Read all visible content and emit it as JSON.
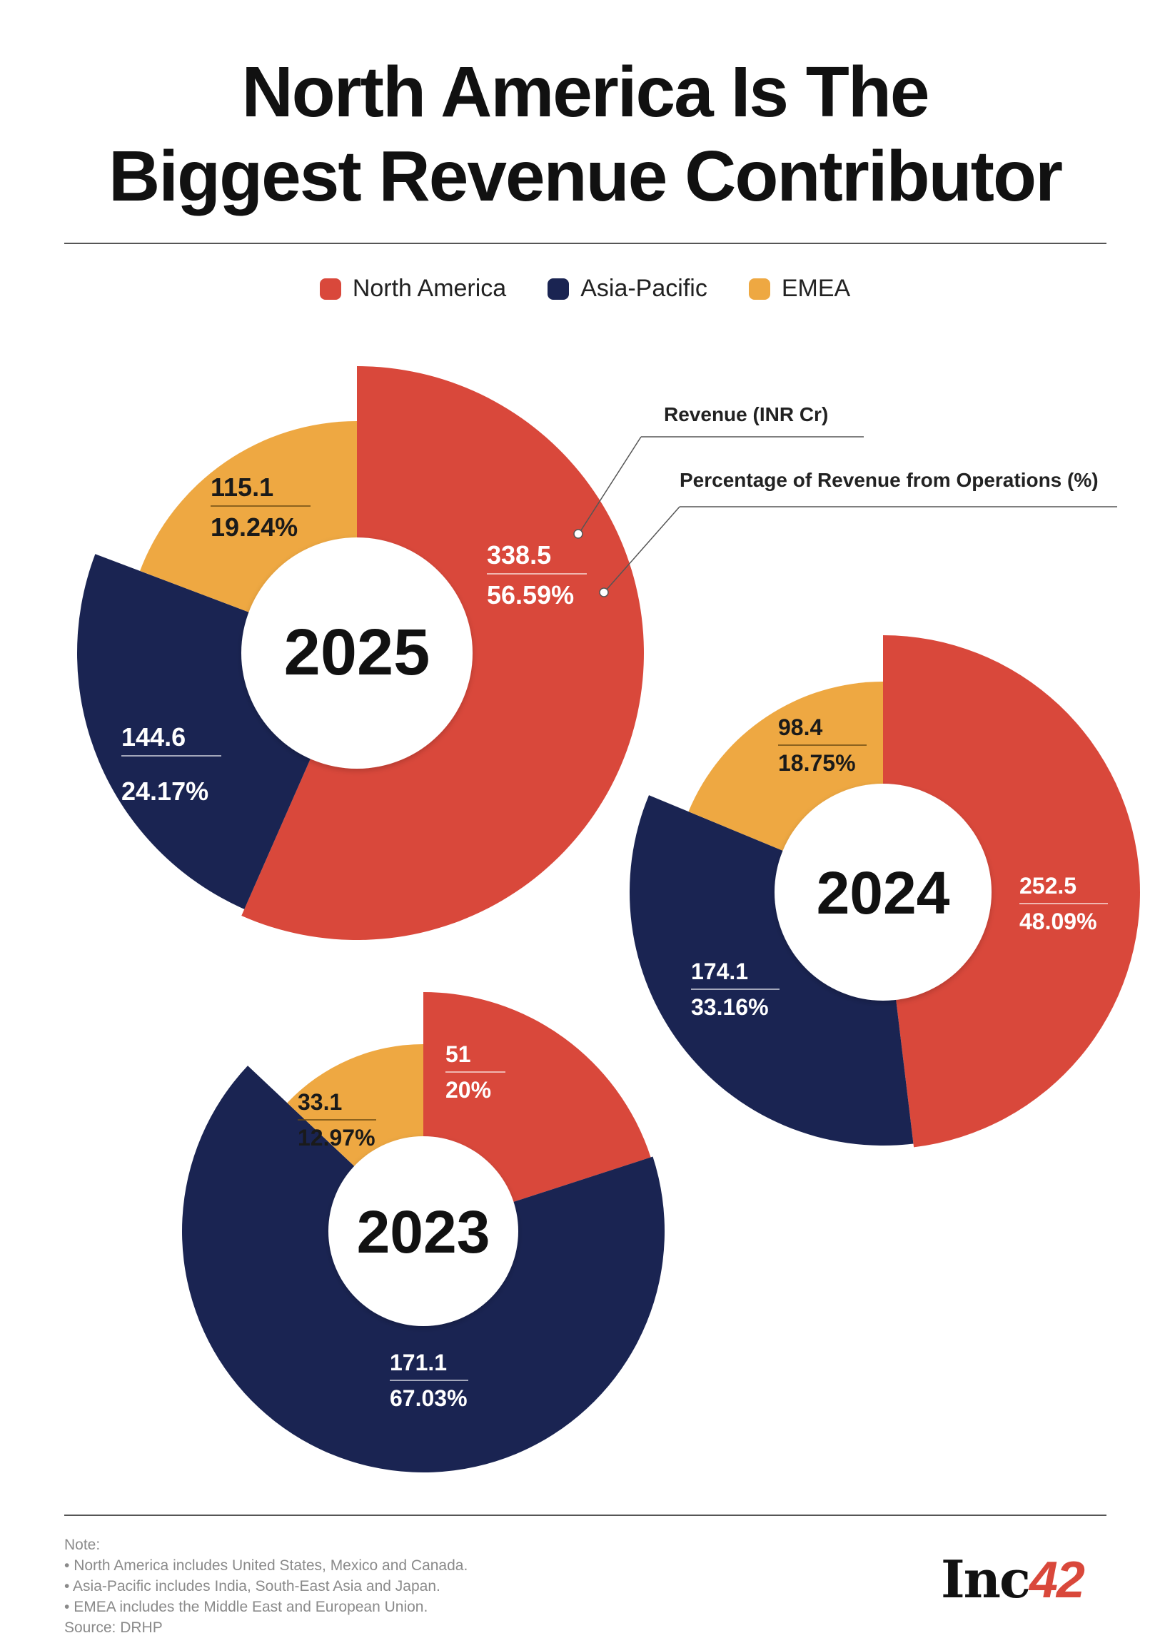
{
  "title": {
    "line1": "North America Is The",
    "line2": "Biggest Revenue Contributor"
  },
  "legend": [
    {
      "label": "North America",
      "color": "#d9483b"
    },
    {
      "label": "Asia-Pacific",
      "color": "#1a2452"
    },
    {
      "label": "EMEA",
      "color": "#eea842"
    }
  ],
  "annotations": {
    "revenue": "Revenue (INR Cr)",
    "percentage": "Percentage of Revenue from Operations (%)"
  },
  "chart_data": [
    {
      "type": "pie",
      "year": "2025",
      "series": [
        {
          "name": "North America",
          "value": "338.5",
          "percent": "56.59%",
          "pct": 56.59
        },
        {
          "name": "Asia-Pacific",
          "value": "144.6",
          "percent": "24.17%",
          "pct": 24.17
        },
        {
          "name": "EMEA",
          "value": "115.1",
          "percent": "19.24%",
          "pct": 19.24
        }
      ]
    },
    {
      "type": "pie",
      "year": "2024",
      "series": [
        {
          "name": "North America",
          "value": "252.5",
          "percent": "48.09%",
          "pct": 48.09
        },
        {
          "name": "Asia-Pacific",
          "value": "174.1",
          "percent": "33.16%",
          "pct": 33.16
        },
        {
          "name": "EMEA",
          "value": "98.4",
          "percent": "18.75%",
          "pct": 18.75
        }
      ]
    },
    {
      "type": "pie",
      "year": "2023",
      "series": [
        {
          "name": "North America",
          "value": "51",
          "percent": "20%",
          "pct": 20
        },
        {
          "name": "Asia-Pacific",
          "value": "171.1",
          "percent": "67.03%",
          "pct": 67.03
        },
        {
          "name": "EMEA",
          "value": "33.1",
          "percent": "12.97%",
          "pct": 12.97
        }
      ]
    }
  ],
  "notes": {
    "heading": "Note:",
    "items": [
      "North America includes United States, Mexico and Canada.",
      "Asia-Pacific includes India, South-East Asia and Japan.",
      "EMEA includes the Middle East and European Union."
    ],
    "source": "Source: DRHP"
  },
  "logo": {
    "text": "Inc",
    "number": "42"
  }
}
